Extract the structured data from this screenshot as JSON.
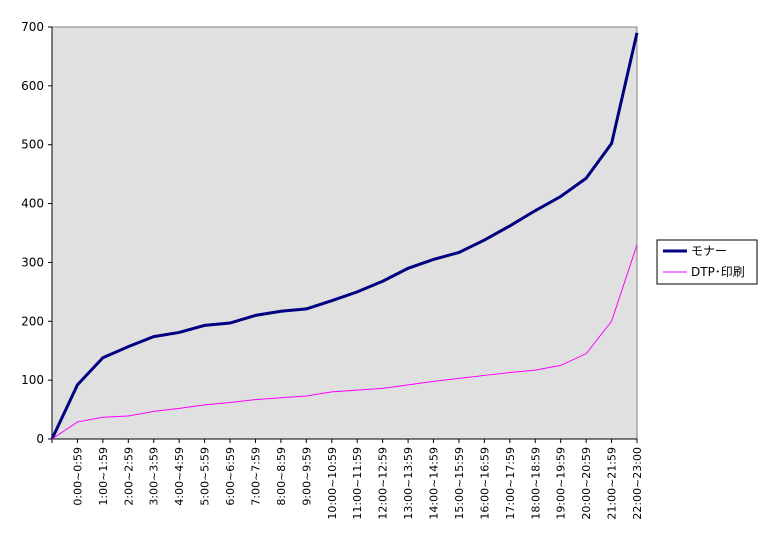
{
  "chart_data": {
    "type": "line",
    "categories": [
      null,
      "0:00~0:59",
      "1:00~1:59",
      "2:00~2:59",
      "3:00~3:59",
      "4:00~4:59",
      "5:00~5:59",
      "6:00~6:59",
      "7:00~7:59",
      "8:00~8:59",
      "9:00~9:59",
      "10:00~10:59",
      "11:00~11:59",
      "12:00~12:59",
      "13:00~13:59",
      "14:00~14:59",
      "15:00~15:59",
      "16:00~16:59",
      "17:00~17:59",
      "18:00~18:59",
      "19:00~19:59",
      "20:00~20:59",
      "21:00~21:59",
      "22:00~23:00"
    ],
    "series": [
      {
        "name": "モナー",
        "color": "#000080",
        "values": [
          0,
          92,
          138,
          157,
          174,
          181,
          193,
          197,
          210,
          217,
          221,
          235,
          250,
          268,
          290,
          305,
          317,
          338,
          362,
          388,
          412,
          443,
          502,
          690
        ]
      },
      {
        "name": "DTP･印刷",
        "color": "#ff00ff",
        "values": [
          0,
          29,
          37,
          39,
          47,
          52,
          58,
          62,
          67,
          70,
          73,
          80,
          83,
          86,
          92,
          98,
          103,
          108,
          113,
          117,
          125,
          145,
          200,
          330
        ]
      }
    ],
    "ylim": [
      0,
      700
    ],
    "yticks": [
      0,
      100,
      200,
      300,
      400,
      500,
      600,
      700
    ],
    "grid": false,
    "legend": "right",
    "plot_background": "#e0e0e0"
  }
}
